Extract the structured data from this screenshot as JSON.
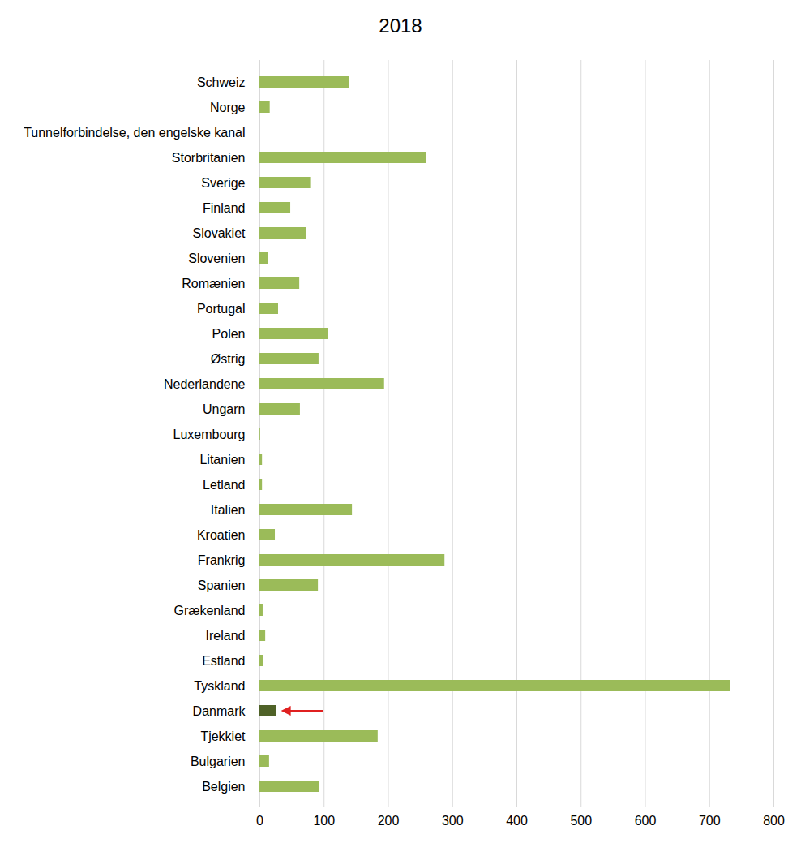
{
  "chart_data": {
    "type": "bar",
    "title": "2018",
    "orientation": "horizontal",
    "categories": [
      "Schweiz",
      "Norge",
      "Tunnelforbindelse, den engelske kanal",
      "Storbritanien",
      "Sverige",
      "Finland",
      "Slovakiet",
      "Slovenien",
      "Romænien",
      "Portugal",
      "Polen",
      "Østrig",
      "Nederlandene",
      "Ungarn",
      "Luxembourg",
      "Litanien",
      "Letland",
      "Italien",
      "Kroatien",
      "Frankrig",
      "Spanien",
      "Grækenland",
      "Ireland",
      "Estland",
      "Tyskland",
      "Danmark",
      "Tjekkiet",
      "Bulgarien",
      "Belgien"
    ],
    "values": [
      140,
      16,
      0,
      259,
      79,
      48,
      72,
      13,
      62,
      29,
      106,
      92,
      194,
      63,
      1,
      4,
      4,
      144,
      24,
      288,
      91,
      5,
      9,
      6,
      733,
      26,
      184,
      15,
      93
    ],
    "colors": [
      "#9bbb59",
      "#9bbb59",
      "#9bbb59",
      "#9bbb59",
      "#9bbb59",
      "#9bbb59",
      "#9bbb59",
      "#9bbb59",
      "#9bbb59",
      "#9bbb59",
      "#9bbb59",
      "#9bbb59",
      "#9bbb59",
      "#9bbb59",
      "#9bbb59",
      "#9bbb59",
      "#9bbb59",
      "#9bbb59",
      "#9bbb59",
      "#9bbb59",
      "#9bbb59",
      "#9bbb59",
      "#9bbb59",
      "#9bbb59",
      "#9bbb59",
      "#4f6228",
      "#9bbb59",
      "#9bbb59",
      "#9bbb59"
    ],
    "xlim": [
      0,
      800
    ],
    "xticks": [
      0,
      100,
      200,
      300,
      400,
      500,
      600,
      700,
      800
    ],
    "grid": true
  }
}
